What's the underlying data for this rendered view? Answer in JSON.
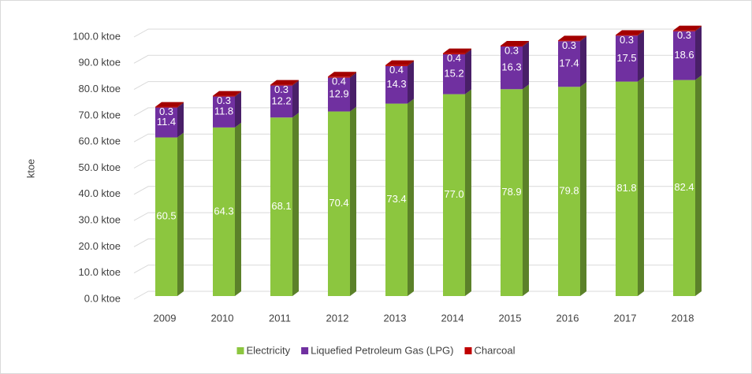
{
  "chart_data": {
    "type": "bar",
    "stacked": true,
    "three_d": true,
    "y_label": "ktoe",
    "categories": [
      "2009",
      "2010",
      "2011",
      "2012",
      "2013",
      "2014",
      "2015",
      "2016",
      "2017",
      "2018"
    ],
    "series": [
      {
        "name": "Electricity",
        "color": "#8cc63f",
        "values": [
          60.5,
          64.3,
          68.1,
          70.4,
          73.4,
          77.0,
          78.9,
          79.8,
          81.8,
          82.4
        ],
        "value_labels": [
          "60.5",
          "64.3",
          "68.1",
          "70.4",
          "73.4",
          "77.0",
          "78.9",
          "79.8",
          "81.8",
          "82.4"
        ]
      },
      {
        "name": "Liquefied Petroleum Gas (LPG)",
        "color": "#7030a0",
        "values": [
          11.4,
          11.8,
          12.2,
          12.9,
          14.3,
          15.2,
          16.3,
          17.4,
          17.5,
          18.6
        ],
        "value_labels": [
          "11.4",
          "11.8",
          "12.2",
          "12.9",
          "14.3",
          "15.2",
          "16.3",
          "17.4",
          "17.5",
          "18.6"
        ]
      },
      {
        "name": "Charcoal",
        "color": "#c00000",
        "values": [
          0.3,
          0.3,
          0.3,
          0.4,
          0.4,
          0.4,
          0.3,
          0.3,
          0.3,
          0.3
        ],
        "value_labels": [
          "0.3",
          "0.3",
          "0.3",
          "0.4",
          "0.4",
          "0.4",
          "0.3",
          "0.3",
          "0.3",
          "0.3"
        ]
      }
    ],
    "ylim": [
      0,
      100
    ],
    "yticks": [
      {
        "value": 0,
        "label": "0.0 ktoe"
      },
      {
        "value": 10,
        "label": "10.0 ktoe"
      },
      {
        "value": 20,
        "label": "20.0 ktoe"
      },
      {
        "value": 30,
        "label": "30.0 ktoe"
      },
      {
        "value": 40,
        "label": "40.0 ktoe"
      },
      {
        "value": 50,
        "label": "50.0 ktoe"
      },
      {
        "value": 60,
        "label": "60.0 ktoe"
      },
      {
        "value": 70,
        "label": "70.0 ktoe"
      },
      {
        "value": 80,
        "label": "80.0 ktoe"
      },
      {
        "value": 90,
        "label": "90.0 ktoe"
      },
      {
        "value": 100,
        "label": "100.0 ktoe"
      }
    ],
    "grid": true,
    "legend": "bottom"
  }
}
